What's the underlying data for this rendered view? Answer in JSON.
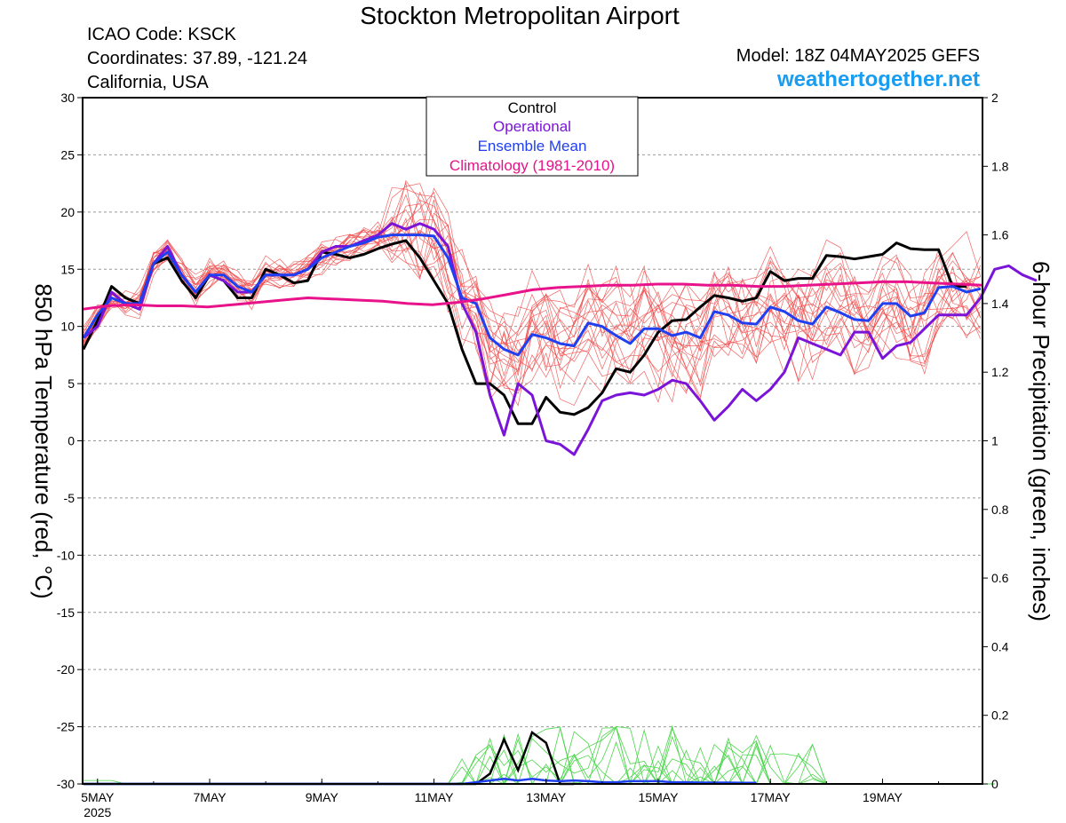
{
  "header": {
    "title": "Stockton Metropolitan Airport",
    "icao": "ICAO Code: KSCK",
    "coordinates": "Coordinates: 37.89, -121.24",
    "region": "California, USA",
    "model": "Model: 18Z 04MAY2025 GEFS",
    "site": "weathertogether.net"
  },
  "colors": {
    "control": "#000000",
    "operational": "#7a14d8",
    "ensemble_mean": "#1f3ff0",
    "climatology": "#e8138a",
    "members": "#f04a4a",
    "precip_members": "#4bd64b",
    "site": "#1a9cf0"
  },
  "chart_data": {
    "type": "line",
    "x_axis": {
      "start": "2025-05-04 18Z",
      "step_hours": 6,
      "range": [
        "2025-05-04 18Z",
        "2025-05-20 18Z"
      ],
      "tick_labels": [
        "5MAY",
        "7MAY",
        "9MAY",
        "11MAY",
        "13MAY",
        "15MAY",
        "17MAY",
        "19MAY"
      ],
      "year_label": "2025"
    },
    "y_left": {
      "label": "850 hPa Temperature (red, °C)",
      "range": [
        -30,
        30
      ],
      "ticks": [
        30,
        25,
        20,
        15,
        10,
        5,
        0,
        -5,
        -10,
        -15,
        -20,
        -25,
        -30
      ]
    },
    "y_right": {
      "label": "6-hour Precipitation (green, inches)",
      "range": [
        0,
        2
      ],
      "ticks": [
        "2",
        "1.8",
        "1.6",
        "1.4",
        "1.2",
        "1",
        "0.8",
        "0.6",
        "0.4",
        "0.2",
        "0"
      ]
    },
    "grid": "horizontal dashed",
    "legend": {
      "position": "top-center",
      "entries": [
        "Control",
        "Operational",
        "Ensemble Mean",
        "Climatology (1981-2010)"
      ]
    },
    "temperature_series": [
      {
        "name": "Control",
        "values": [
          8,
          10.5,
          13.5,
          12.5,
          12,
          15.5,
          16,
          14,
          12.5,
          14.5,
          14,
          12.5,
          12.5,
          15,
          14.5,
          13.8,
          14,
          16.5,
          16.3,
          16,
          16.3,
          16.8,
          17.2,
          17.5,
          16,
          14,
          12,
          8,
          5,
          5,
          4,
          1.5,
          1.5,
          3.8,
          2.5,
          2.3,
          2.9,
          4.2,
          6.3,
          6,
          7.5,
          9.5,
          10.5,
          10.6,
          11.7,
          12.7,
          12.5,
          12.2,
          12.5,
          14.8,
          14,
          14.2,
          14.2,
          16.2,
          16.1,
          15.9,
          16.1,
          16.3,
          17.3,
          16.8,
          16.7,
          16.7,
          13.5,
          13.5
        ]
      },
      {
        "name": "Operational",
        "values": [
          9,
          10,
          13,
          12,
          11.5,
          15.5,
          17,
          14.5,
          13,
          14.5,
          14,
          13,
          13,
          14.5,
          14.5,
          14.5,
          15,
          16.5,
          17,
          17,
          17.5,
          18,
          19,
          18.5,
          19,
          18.5,
          17,
          12,
          9.5,
          4,
          0.5,
          5,
          4,
          0,
          -0.3,
          -1.2,
          1,
          3.5,
          4,
          4.2,
          4,
          4.5,
          5.3,
          5,
          3.5,
          1.8,
          3,
          4.5,
          3.5,
          4.5,
          6,
          9,
          8.5,
          8,
          7.5,
          9.5,
          9.5,
          7.2,
          8.3,
          8.6,
          9.8,
          11,
          11,
          11,
          12.5,
          15,
          15.3,
          14.5,
          14
        ]
      },
      {
        "name": "Ensemble Mean",
        "values": [
          9,
          11,
          12.5,
          12,
          12,
          15.5,
          16.5,
          14.5,
          13,
          14.5,
          14.5,
          13.5,
          13,
          14.5,
          14.5,
          14.5,
          15,
          16,
          16.5,
          17,
          17.3,
          17.8,
          18,
          18,
          18,
          17.9,
          16,
          12.5,
          12,
          9,
          8,
          7.5,
          9.3,
          9,
          8.5,
          8.3,
          10.3,
          10,
          9.2,
          8.5,
          9.8,
          9.8,
          9.2,
          9.5,
          9,
          11.3,
          11,
          10.3,
          10.2,
          11.7,
          11.3,
          10.5,
          10.2,
          11.7,
          11.2,
          10.6,
          10.5,
          12,
          12,
          10.9,
          11.2,
          13.4,
          13.5,
          13,
          13.3
        ]
      },
      {
        "name": "Climatology (1981-2010)",
        "values": [
          11.5,
          11.8,
          11.9,
          11.8,
          11.8,
          11.7,
          11.9,
          12.1,
          12.3,
          12.5,
          12.4,
          12.3,
          12.2,
          12.0,
          11.9,
          12.1,
          12.4,
          12.8,
          13.2,
          13.4,
          13.5,
          13.6,
          13.6,
          13.7,
          13.7,
          13.6,
          13.6,
          13.5,
          13.5,
          13.6,
          13.7,
          13.8,
          13.9,
          13.9,
          13.8,
          13.7,
          13.6
        ]
      }
    ],
    "precip_series": [
      {
        "name": "Control",
        "values": [
          0,
          0,
          0,
          0,
          0,
          0,
          0,
          0,
          0,
          0,
          0,
          0,
          0,
          0,
          0,
          0,
          0,
          0,
          0,
          0,
          0,
          0,
          0,
          0,
          0,
          0,
          0,
          0,
          0,
          0.03,
          0.13,
          0.04,
          0.15,
          0.12,
          0,
          0
        ]
      },
      {
        "name": "Ensemble Mean",
        "values": [
          0,
          0,
          0,
          0,
          0,
          0,
          0,
          0,
          0,
          0,
          0,
          0,
          0,
          0,
          0,
          0,
          0,
          0,
          0,
          0,
          0,
          0,
          0,
          0,
          0,
          0,
          0,
          0,
          0.005,
          0.01,
          0.015,
          0.01,
          0.015,
          0.01,
          0.008,
          0.01,
          0.008,
          0.005,
          0.005,
          0.008,
          0.008,
          0.008,
          0.005,
          0.005,
          0.004,
          0.004,
          0.004,
          0.003,
          0.003
        ]
      }
    ]
  }
}
